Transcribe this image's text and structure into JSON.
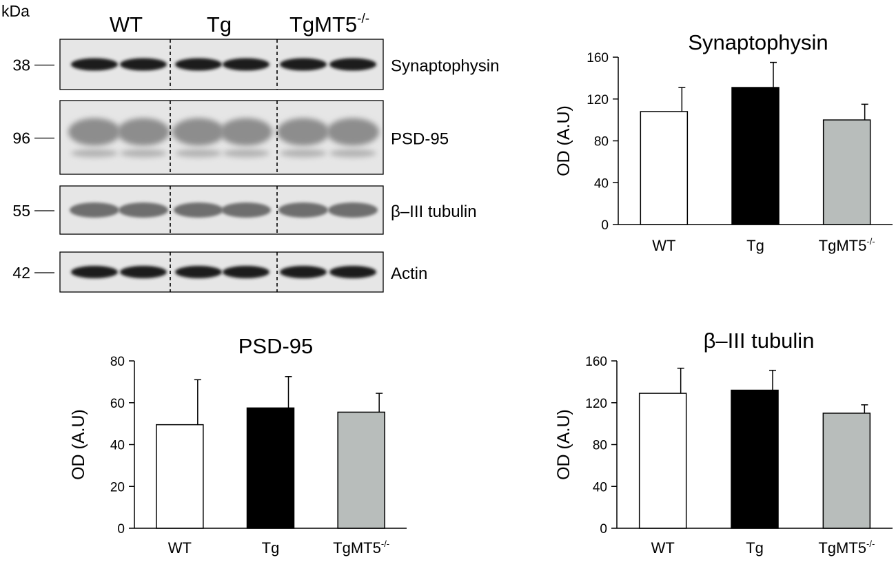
{
  "western_blot": {
    "unit_label": "kDa",
    "groups": [
      {
        "label": "WT",
        "superscript": ""
      },
      {
        "label": "Tg",
        "superscript": ""
      },
      {
        "label": "TgMT5",
        "superscript": "-/-"
      }
    ],
    "panels": [
      {
        "protein": "Synaptophysin",
        "kda": "38",
        "band_style": "dark"
      },
      {
        "protein": "PSD-95",
        "kda": "96",
        "band_style": "diffuse"
      },
      {
        "protein": "β–III tubulin",
        "kda": "55",
        "band_style": "medium"
      },
      {
        "protein": "Actin",
        "kda": "42",
        "band_style": "dark"
      }
    ]
  },
  "chart_data": [
    {
      "type": "bar",
      "title": "Synaptophysin",
      "ylabel": "OD (A.U)",
      "xlabel": "",
      "categories": [
        "WT",
        "Tg",
        "TgMT5"
      ],
      "category_superscripts": [
        "",
        "",
        "-/-"
      ],
      "values": [
        108,
        131,
        100
      ],
      "errors": [
        23,
        24,
        15
      ],
      "bar_colors": [
        "#ffffff",
        "#000000",
        "#b8bdbb"
      ],
      "ylim": [
        0,
        160
      ],
      "yticks": [
        0,
        40,
        80,
        120,
        160
      ],
      "grid": false,
      "legend": "none"
    },
    {
      "type": "bar",
      "title": "PSD-95",
      "ylabel": "OD (A.U)",
      "xlabel": "",
      "categories": [
        "WT",
        "Tg",
        "TgMT5"
      ],
      "category_superscripts": [
        "",
        "",
        "-/-"
      ],
      "values": [
        49.5,
        57.5,
        55.5
      ],
      "errors": [
        21.5,
        15,
        9
      ],
      "bar_colors": [
        "#ffffff",
        "#000000",
        "#b8bdbb"
      ],
      "ylim": [
        0,
        80
      ],
      "yticks": [
        0,
        20,
        40,
        60,
        80
      ],
      "grid": false,
      "legend": "none"
    },
    {
      "type": "bar",
      "title": "β–III tubulin",
      "ylabel": "OD (A.U)",
      "xlabel": "",
      "categories": [
        "WT",
        "Tg",
        "TgMT5"
      ],
      "category_superscripts": [
        "",
        "",
        "-/-"
      ],
      "values": [
        129,
        132,
        110
      ],
      "errors": [
        24,
        19,
        8
      ],
      "bar_colors": [
        "#ffffff",
        "#000000",
        "#b8bdbb"
      ],
      "ylim": [
        0,
        160
      ],
      "yticks": [
        0,
        40,
        80,
        120,
        160
      ],
      "grid": false,
      "legend": "none"
    }
  ]
}
